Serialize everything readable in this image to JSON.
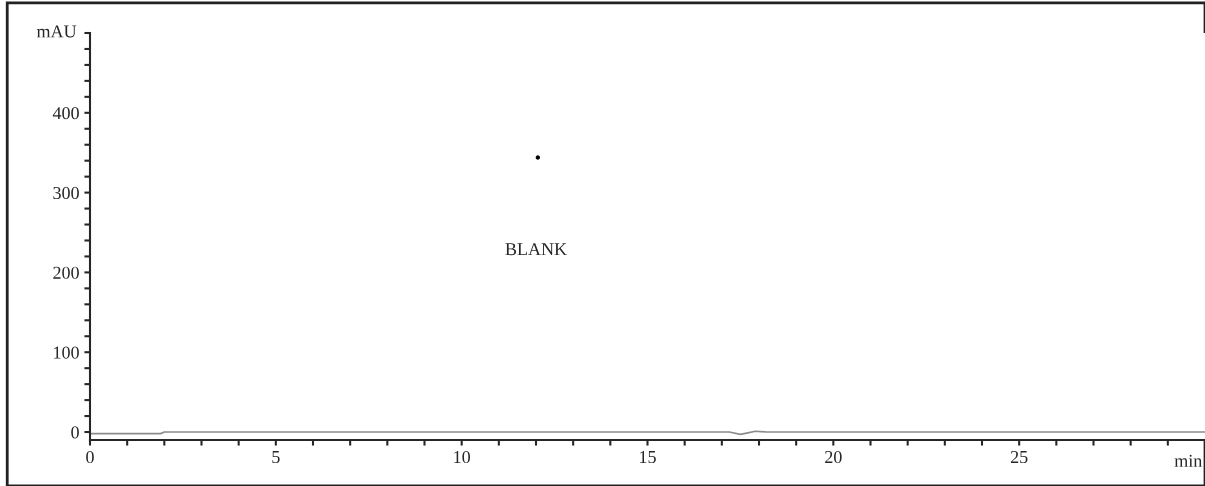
{
  "chart_data": {
    "type": "line",
    "xlabel": "min",
    "ylabel": "mAU",
    "annotations": [
      "BLANK"
    ],
    "series": [
      {
        "color": "#8c8c8c",
        "x": [
          0,
          1.9,
          2.0,
          5,
          10,
          15,
          17.2,
          17.5,
          17.7,
          17.9,
          18.2,
          20,
          25,
          30
        ],
        "values": [
          -2,
          -2,
          0,
          0,
          0,
          0,
          0,
          -3,
          -1,
          1,
          0,
          0,
          0,
          0
        ]
      },
      {
        "type": "scatter",
        "color": "#000000",
        "x": [
          12.05
        ],
        "values": [
          344
        ]
      }
    ],
    "xlim": [
      0,
      30
    ],
    "ylim": [
      -10,
      500
    ],
    "xticks": [
      0,
      {
        "value": 1,
        "label": null
      },
      {
        "value": 2,
        "label": null
      },
      {
        "value": 3,
        "label": null
      },
      {
        "value": 4,
        "label": null
      },
      5,
      {
        "value": 6,
        "label": null
      },
      {
        "value": 7,
        "label": null
      },
      {
        "value": 8,
        "label": null
      },
      {
        "value": 9,
        "label": null
      },
      10,
      {
        "value": 11,
        "label": null
      },
      {
        "value": 12,
        "label": null
      },
      {
        "value": 13,
        "label": null
      },
      {
        "value": 14,
        "label": null
      },
      15,
      {
        "value": 16,
        "label": null
      },
      {
        "value": 17,
        "label": null
      },
      {
        "value": 18,
        "label": null
      },
      {
        "value": 19,
        "label": null
      },
      20,
      {
        "value": 21,
        "label": null
      },
      {
        "value": 22,
        "label": null
      },
      {
        "value": 23,
        "label": null
      },
      {
        "value": 24,
        "label": null
      },
      25,
      {
        "value": 26,
        "label": null
      },
      {
        "value": 27,
        "label": null
      },
      {
        "value": 28,
        "label": null
      },
      {
        "value": 29,
        "label": null
      }
    ],
    "yticks": [
      0,
      {
        "value": 20,
        "label": null
      },
      {
        "value": 40,
        "label": null
      },
      {
        "value": 60,
        "label": null
      },
      {
        "value": 80,
        "label": null
      },
      100,
      {
        "value": 120,
        "label": null
      },
      {
        "value": 140,
        "label": null
      },
      {
        "value": 160,
        "label": null
      },
      {
        "value": 180,
        "label": null
      },
      200,
      {
        "value": 220,
        "label": null
      },
      {
        "value": 240,
        "label": null
      },
      {
        "value": 260,
        "label": null
      },
      {
        "value": 280,
        "label": null
      },
      300,
      {
        "value": 320,
        "label": null
      },
      {
        "value": 340,
        "label": null
      },
      {
        "value": 360,
        "label": null
      },
      {
        "value": 380,
        "label": null
      },
      400,
      {
        "value": 420,
        "label": null
      },
      {
        "value": 440,
        "label": null
      },
      {
        "value": 460,
        "label": null
      },
      {
        "value": 480,
        "label": null
      },
      {
        "value": 500,
        "label": null
      }
    ],
    "grid": false,
    "legend": false,
    "marker": "none",
    "line_style": "solid"
  }
}
